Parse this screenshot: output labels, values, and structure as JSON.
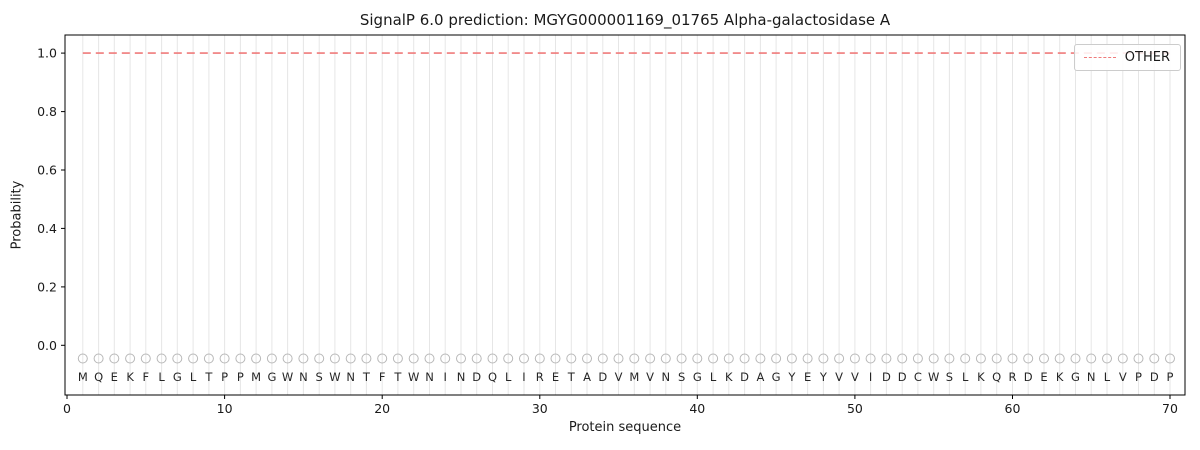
{
  "chart_data": {
    "type": "line",
    "title": "SignalP 6.0 prediction: MGYG000001169_01765 Alpha-galactosidase A",
    "xlabel": "Protein sequence",
    "ylabel": "Probability",
    "xlim": [
      -0.13,
      70.95
    ],
    "ylim": [
      -0.17,
      1.062
    ],
    "x_ticks": [
      0,
      10,
      20,
      30,
      40,
      50,
      60,
      70
    ],
    "y_ticks": [
      0.0,
      0.2,
      0.4,
      0.6,
      0.8,
      1.0
    ],
    "grid": "vertical line at every residue position",
    "legend_position": "upper right",
    "sequence": [
      "M",
      "Q",
      "E",
      "K",
      "F",
      "L",
      "G",
      "L",
      "T",
      "P",
      "P",
      "M",
      "G",
      "W",
      "N",
      "S",
      "W",
      "N",
      "T",
      "F",
      "T",
      "W",
      "N",
      "I",
      "N",
      "D",
      "Q",
      "L",
      "I",
      "R",
      "E",
      "T",
      "A",
      "D",
      "V",
      "M",
      "V",
      "N",
      "S",
      "G",
      "L",
      "K",
      "D",
      "A",
      "G",
      "Y",
      "E",
      "Y",
      "V",
      "V",
      "I",
      "D",
      "D",
      "C",
      "W",
      "S",
      "L",
      "K",
      "Q",
      "R",
      "D",
      "E",
      "K",
      "G",
      "N",
      "L",
      "V",
      "P",
      "D",
      "P"
    ],
    "series": [
      {
        "name": "OTHER",
        "color": "#ef7b7b",
        "style": "dashed",
        "x_start": 1,
        "values": [
          1.0,
          1.0,
          1.0,
          1.0,
          1.0,
          1.0,
          1.0,
          1.0,
          1.0,
          1.0,
          1.0,
          1.0,
          1.0,
          1.0,
          1.0,
          1.0,
          1.0,
          1.0,
          1.0,
          1.0,
          1.0,
          1.0,
          1.0,
          1.0,
          1.0,
          1.0,
          1.0,
          1.0,
          1.0,
          1.0,
          1.0,
          1.0,
          1.0,
          1.0,
          1.0,
          1.0,
          1.0,
          1.0,
          1.0,
          1.0,
          1.0,
          1.0,
          1.0,
          1.0,
          1.0,
          1.0,
          1.0,
          1.0,
          1.0,
          1.0,
          1.0,
          1.0,
          1.0,
          1.0,
          1.0,
          1.0,
          1.0,
          1.0,
          1.0,
          1.0,
          1.0,
          1.0,
          1.0,
          1.0,
          1.0,
          1.0,
          1.0,
          1.0,
          1.0,
          1.0
        ]
      }
    ],
    "markers": {
      "shape": "open-circle",
      "y": -0.045
    },
    "sequence_label_y": -0.108
  },
  "colors": {
    "axis": "#000000",
    "grid": "#e6e6e6",
    "marker": "#b8b8b8",
    "text": "#1a1a1a",
    "letter": "#262626",
    "other_line": "#ef7b7b"
  }
}
